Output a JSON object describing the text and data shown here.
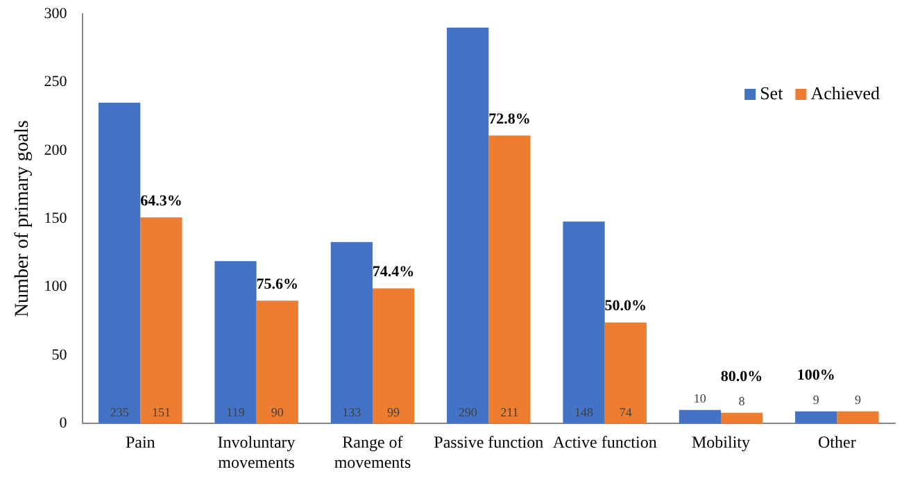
{
  "chart_data": {
    "type": "bar",
    "ylabel": "Number of primary goals",
    "categories": [
      "Pain",
      "Involuntary movements",
      "Range of movements",
      "Passive function",
      "Active function",
      "Mobility",
      "Other"
    ],
    "series": [
      {
        "name": "Set",
        "color": "#4472c4",
        "values": [
          235,
          119,
          133,
          290,
          148,
          10,
          9
        ]
      },
      {
        "name": "Achieved",
        "color": "#ed7d31",
        "values": [
          151,
          90,
          99,
          211,
          74,
          8,
          9
        ]
      }
    ],
    "ylim": [
      0,
      300
    ],
    "yticks": [
      0,
      50,
      100,
      150,
      200,
      250,
      300
    ],
    "grid": false,
    "legend": "top right",
    "data_labels": true,
    "annotations": [
      {
        "text": "64.3%",
        "x": "Pain",
        "y": 151
      },
      {
        "text": "75.6%",
        "x": "Involuntary movements",
        "y": 90
      },
      {
        "text": "74.4%",
        "x": "Range of movements",
        "y": 99
      },
      {
        "text": "72.8%",
        "x": "Passive function",
        "y": 211
      },
      {
        "text": "50.0%",
        "x": "Active function",
        "y": 74
      },
      {
        "text": "80.0%",
        "x": "Mobility",
        "y": 8
      },
      {
        "text": "100%",
        "x": "Other",
        "y": 9
      }
    ]
  }
}
